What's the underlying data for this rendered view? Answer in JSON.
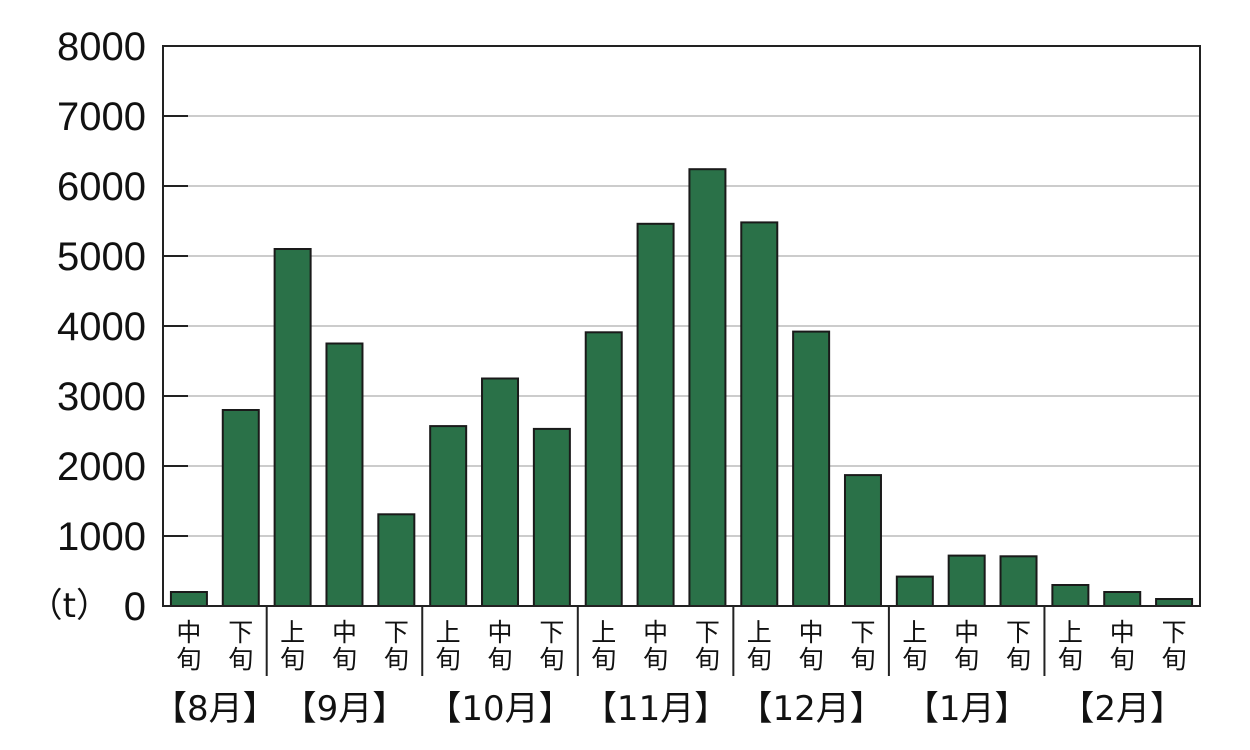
{
  "chart_data": {
    "type": "bar",
    "title": "",
    "ylabel": "（t）",
    "xlabel": "",
    "ylim": [
      0,
      8000
    ],
    "yticks": [
      0,
      1000,
      2000,
      3000,
      4000,
      5000,
      6000,
      7000,
      8000
    ],
    "grid": true,
    "months": [
      {
        "label": "【8月】",
        "periods": [
          "中旬",
          "下旬"
        ]
      },
      {
        "label": "【9月】",
        "periods": [
          "上旬",
          "中旬",
          "下旬"
        ]
      },
      {
        "label": "【10月】",
        "periods": [
          "上旬",
          "中旬",
          "下旬"
        ]
      },
      {
        "label": "【11月】",
        "periods": [
          "上旬",
          "中旬",
          "下旬"
        ]
      },
      {
        "label": "【12月】",
        "periods": [
          "上旬",
          "中旬",
          "下旬"
        ]
      },
      {
        "label": "【1月】",
        "periods": [
          "上旬",
          "中旬",
          "下旬"
        ]
      },
      {
        "label": "【2月】",
        "periods": [
          "上旬",
          "中旬",
          "下旬"
        ]
      }
    ],
    "values": [
      200,
      2800,
      5100,
      3750,
      1310,
      2570,
      3250,
      2530,
      3910,
      5460,
      6240,
      5480,
      3920,
      1870,
      420,
      720,
      710,
      300,
      200,
      100
    ],
    "bar_color": "#2a7148",
    "grid_color": "#cccccc"
  }
}
